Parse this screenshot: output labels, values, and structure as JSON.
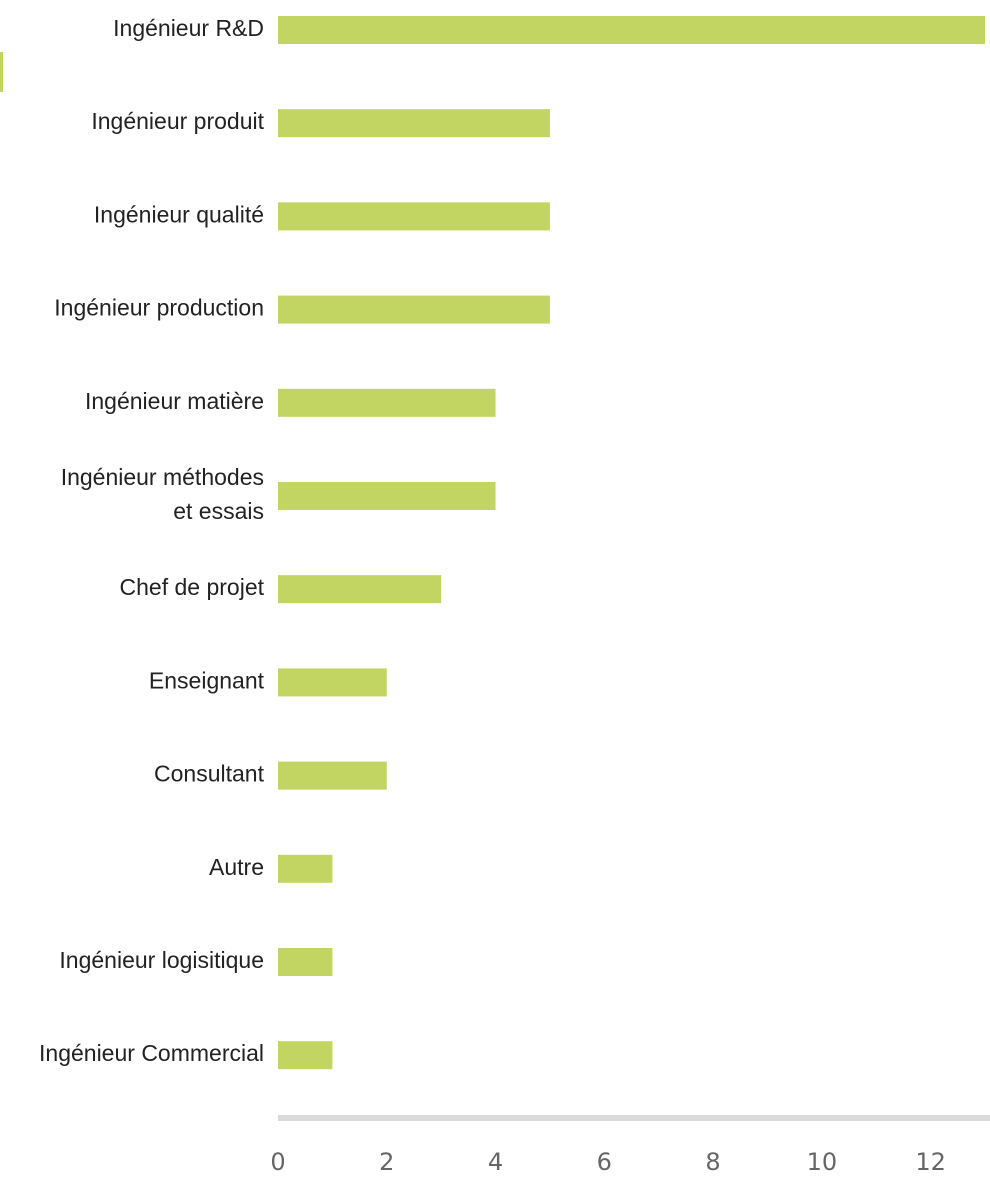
{
  "colors": {
    "bar": "#c2d461",
    "axis": "#dadada",
    "label_text": "#222222",
    "tick_text": "#666666"
  },
  "chart_data": {
    "type": "bar",
    "orientation": "horizontal",
    "title": "",
    "xlabel": "",
    "ylabel": "",
    "categories": [
      "Ingénieur R&D",
      "Ingénieur produit",
      "Ingénieur qualité",
      "Ingénieur production",
      "Ingénieur matière",
      "Ingénieur méthodes et essais",
      "Chef de projet",
      "Enseignant",
      "Consultant",
      "Autre",
      "Ingénieur logisitique",
      "Ingénieur Commercial"
    ],
    "values": [
      13,
      5,
      5,
      5,
      4,
      4,
      3,
      2,
      2,
      1,
      1,
      1
    ],
    "xlim": [
      0,
      13
    ],
    "x_ticks": [
      "0",
      "2",
      "4",
      "6",
      "8",
      "10",
      "12"
    ],
    "grid": false,
    "legend": "none"
  }
}
